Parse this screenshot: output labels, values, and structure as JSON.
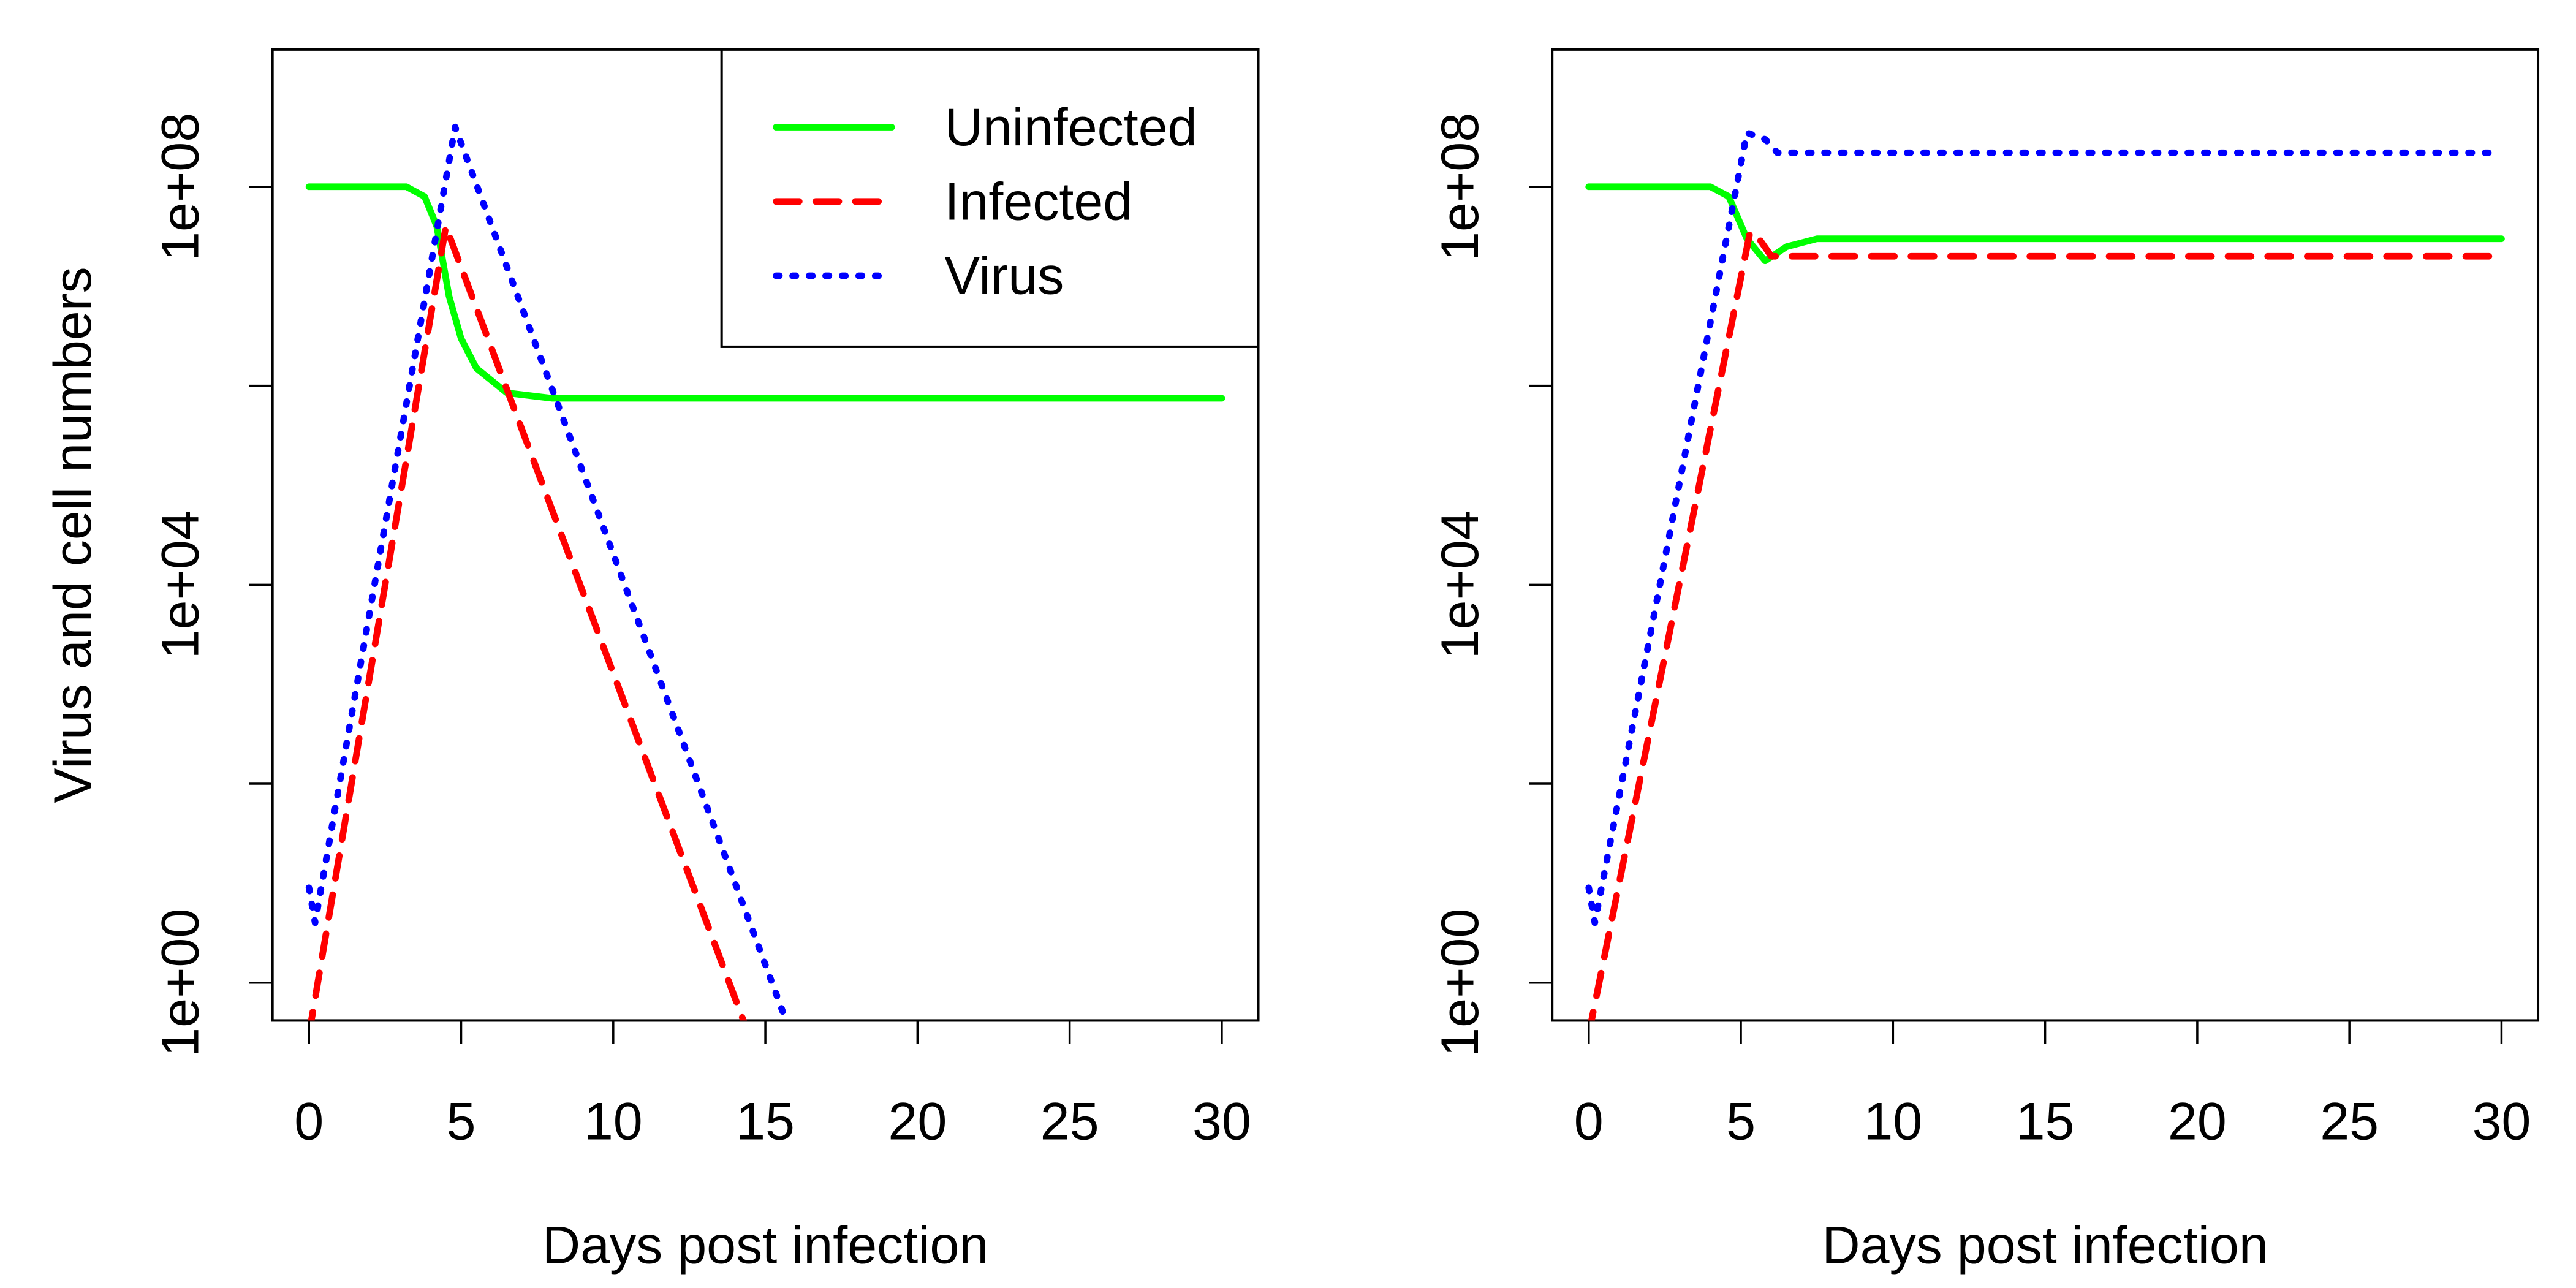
{
  "chart_data": [
    {
      "type": "line",
      "panel": "left",
      "xlabel": "Days post infection",
      "ylabel": "Virus and cell numbers",
      "yscale": "log",
      "xlim": [
        -1.2,
        31.2
      ],
      "ylim_log10": [
        -0.38,
        9.38
      ],
      "xticks": [
        0,
        5,
        10,
        15,
        20,
        25,
        30
      ],
      "yticks": [
        1,
        100,
        10000,
        1000000,
        100000000
      ],
      "ytick_labels": {
        "1": "1e+00",
        "10000": "1e+04",
        "100000000": "1e+08"
      },
      "legend": {
        "placement": "top-right",
        "entries": [
          "Uninfected",
          "Infected",
          "Virus"
        ]
      },
      "series": [
        {
          "name": "Uninfected",
          "color": "#00ff00",
          "style": "solid",
          "points": [
            [
              0,
              100000000.0
            ],
            [
              3.2,
              100000000.0
            ],
            [
              3.8,
              80000000.0
            ],
            [
              4.2,
              40000000.0
            ],
            [
              4.6,
              8000000.0
            ],
            [
              5,
              3000000.0
            ],
            [
              5.5,
              1500000.0
            ],
            [
              6.5,
              850000.0
            ],
            [
              8,
              750000.0
            ],
            [
              30,
              750000.0
            ]
          ]
        },
        {
          "name": "Infected",
          "color": "#ff0000",
          "style": "dashed",
          "points": [
            [
              0,
              0.3
            ],
            [
              4.5,
              40000000.0
            ],
            [
              14.3,
              0.4
            ]
          ]
        },
        {
          "name": "Virus",
          "color": "#0000ff",
          "style": "dotted",
          "points": [
            [
              0,
              9
            ],
            [
              0.2,
              4
            ],
            [
              4.8,
              400000000.0
            ],
            [
              15.7,
              0.4
            ]
          ]
        }
      ]
    },
    {
      "type": "line",
      "panel": "right",
      "xlabel": "Days post infection",
      "ylabel": "",
      "yscale": "log",
      "xlim": [
        -1.2,
        31.2
      ],
      "ylim_log10": [
        -0.38,
        9.38
      ],
      "xticks": [
        0,
        5,
        10,
        15,
        20,
        25,
        30
      ],
      "yticks": [
        1,
        100,
        10000,
        1000000,
        100000000
      ],
      "ytick_labels": {
        "1": "1e+00",
        "10000": "1e+04",
        "100000000": "1e+08"
      },
      "series": [
        {
          "name": "Uninfected",
          "color": "#00ff00",
          "style": "solid",
          "points": [
            [
              0,
              100000000.0
            ],
            [
              4,
              100000000.0
            ],
            [
              4.6,
              80000000.0
            ],
            [
              5.2,
              30000000.0
            ],
            [
              5.8,
              18000000.0
            ],
            [
              6.5,
              25000000.0
            ],
            [
              7.5,
              30000000.0
            ],
            [
              30,
              30000000.0
            ]
          ]
        },
        {
          "name": "Infected",
          "color": "#ff0000",
          "style": "dashed",
          "points": [
            [
              0,
              0.3
            ],
            [
              5.3,
              35000000.0
            ],
            [
              5.6,
              30000000.0
            ],
            [
              6,
              20000000.0
            ],
            [
              30,
              20000000.0
            ]
          ]
        },
        {
          "name": "Virus",
          "color": "#0000ff",
          "style": "dotted",
          "points": [
            [
              0,
              9
            ],
            [
              0.2,
              4
            ],
            [
              5.2,
              350000000.0
            ],
            [
              5.8,
              300000000.0
            ],
            [
              6.2,
              220000000.0
            ],
            [
              30,
              220000000.0
            ]
          ]
        }
      ]
    }
  ]
}
